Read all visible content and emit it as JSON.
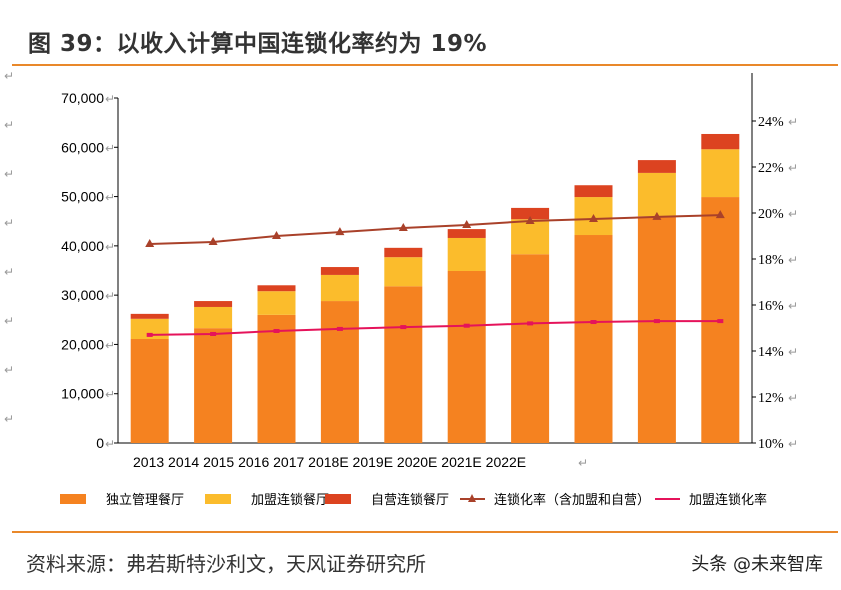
{
  "title": "图 39：以收入计算中国连锁化率约为 19%",
  "source": "资料来源：弗若斯特沙利文，天风证券研究所",
  "watermark": "头条 @未来智库",
  "chart_data": {
    "type": "bar",
    "stacked": true,
    "categories": [
      "2013",
      "2014",
      "2015",
      "2016",
      "2017",
      "2018E",
      "2019E",
      "2020E",
      "2021E",
      "2022E"
    ],
    "x_tick_text": "2013 2014 2015 2016 2017 2018E 2019E 2020E 2021E 2022E",
    "series": [
      {
        "name": "独立管理餐厅",
        "axis": "left",
        "color": "#f58220",
        "values": [
          21100,
          23300,
          26000,
          28800,
          31800,
          34900,
          38300,
          42200,
          46000,
          49900
        ]
      },
      {
        "name": "加盟连锁餐厅",
        "axis": "left",
        "color": "#fbbc2c",
        "values": [
          4100,
          4300,
          4800,
          5300,
          5900,
          6700,
          7100,
          7700,
          8800,
          9700
        ]
      },
      {
        "name": "自营连锁餐厅",
        "axis": "left",
        "color": "#dc4320",
        "values": [
          1000,
          1200,
          1200,
          1600,
          1900,
          1800,
          2300,
          2400,
          2600,
          3100
        ]
      },
      {
        "name": "连锁化率（含加盟和自营）",
        "axis": "right",
        "type": "line",
        "marker": "triangle",
        "color": "#a9412a",
        "values": [
          18.65,
          18.74,
          19.0,
          19.17,
          19.35,
          19.48,
          19.65,
          19.74,
          19.83,
          19.91
        ]
      },
      {
        "name": "加盟连锁化率",
        "axis": "right",
        "type": "line",
        "marker": "square",
        "color": "#e5135a",
        "values": [
          14.7,
          14.74,
          14.87,
          14.96,
          15.04,
          15.1,
          15.2,
          15.26,
          15.3,
          15.3
        ]
      }
    ],
    "left_axis": {
      "ylim": [
        0,
        70000
      ],
      "ticks": [
        "0",
        "10,000",
        "20,000",
        "30,000",
        "40,000",
        "50,000",
        "60,000",
        "70,000"
      ]
    },
    "right_axis": {
      "ylim": [
        10,
        24
      ],
      "ticks": [
        "10%",
        "12%",
        "14%",
        "16%",
        "18%",
        "20%",
        "22%",
        "24%"
      ]
    },
    "legend_position": "bottom",
    "grid": false
  }
}
